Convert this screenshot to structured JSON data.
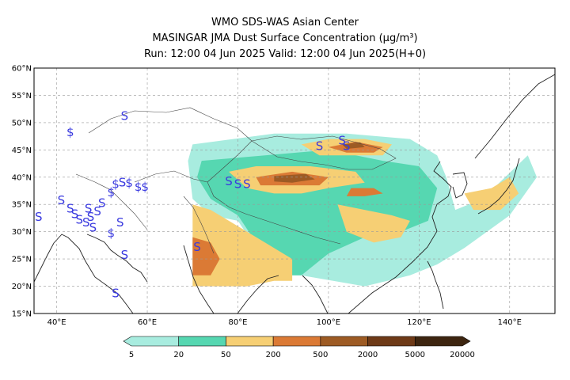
{
  "header": {
    "line1": "WMO SDS-WAS Asian Center",
    "line2": "MASINGAR JMA Dust Surface Concentration (μg/m³)",
    "line3": "Run: 12:00 04 Jun 2025     Valid: 12:00 04 Jun 2025(H+0)"
  },
  "axes": {
    "lat_ticks": [
      "60°N",
      "55°N",
      "50°N",
      "45°N",
      "40°N",
      "35°N",
      "30°N",
      "25°N",
      "20°N",
      "15°N"
    ],
    "lon_ticks": [
      "40°E",
      "60°E",
      "80°E",
      "100°E",
      "120°E",
      "140°E"
    ],
    "lon_range": [
      35,
      150
    ],
    "lat_range": [
      15,
      60
    ],
    "grid": true
  },
  "colorbar": {
    "labels": [
      "5",
      "20",
      "50",
      "200",
      "500",
      "2000",
      "5000",
      "20000"
    ],
    "colors": [
      "#a8ecdf",
      "#56d7b1",
      "#f6cf74",
      "#db7a35",
      "#9d5b24",
      "#6e3a17",
      "#3d2510"
    ]
  },
  "dust_regions": [
    {
      "level": 1,
      "points": [
        [
          70,
          46
        ],
        [
          88,
          48
        ],
        [
          104,
          48
        ],
        [
          118,
          47
        ],
        [
          124,
          44
        ],
        [
          126,
          40
        ],
        [
          128,
          34
        ],
        [
          134,
          36
        ],
        [
          144,
          44
        ],
        [
          146,
          40
        ],
        [
          140,
          33
        ],
        [
          130,
          27
        ],
        [
          124,
          24
        ],
        [
          118,
          22
        ],
        [
          108,
          20
        ],
        [
          94,
          22
        ],
        [
          88,
          22
        ],
        [
          80,
          32
        ],
        [
          74,
          33
        ],
        [
          70,
          36
        ],
        [
          69,
          43
        ]
      ]
    },
    {
      "level": 2,
      "points": [
        [
          72,
          43
        ],
        [
          86,
          44
        ],
        [
          100,
          45
        ],
        [
          112,
          43
        ],
        [
          120,
          42
        ],
        [
          124,
          38
        ],
        [
          122,
          32
        ],
        [
          116,
          30
        ],
        [
          108,
          29
        ],
        [
          100,
          26
        ],
        [
          94,
          22
        ],
        [
          90,
          22
        ],
        [
          88,
          24
        ],
        [
          84,
          28
        ],
        [
          80,
          33
        ],
        [
          74,
          36
        ],
        [
          71,
          40
        ]
      ]
    },
    {
      "level": 3,
      "points": [
        [
          70,
          35
        ],
        [
          74,
          34
        ],
        [
          80,
          31
        ],
        [
          86,
          28
        ],
        [
          92,
          25
        ],
        [
          92,
          21
        ],
        [
          88,
          21
        ],
        [
          82,
          20
        ],
        [
          74,
          20
        ],
        [
          70,
          20
        ]
      ]
    },
    {
      "level": 3,
      "points": [
        [
          78,
          41
        ],
        [
          84,
          42
        ],
        [
          96,
          42
        ],
        [
          106,
          41
        ],
        [
          108,
          39
        ],
        [
          100,
          38
        ],
        [
          94,
          37
        ],
        [
          88,
          37
        ],
        [
          82,
          38
        ]
      ]
    },
    {
      "level": 3,
      "points": [
        [
          94,
          46
        ],
        [
          100,
          47
        ],
        [
          108,
          47
        ],
        [
          114,
          46
        ],
        [
          112,
          44
        ],
        [
          104,
          44
        ],
        [
          98,
          44
        ]
      ]
    },
    {
      "level": 3,
      "points": [
        [
          102,
          35
        ],
        [
          108,
          34
        ],
        [
          114,
          33
        ],
        [
          118,
          32
        ],
        [
          116,
          29
        ],
        [
          110,
          28
        ],
        [
          104,
          30
        ]
      ]
    },
    {
      "level": 3,
      "points": [
        [
          130,
          37
        ],
        [
          136,
          38
        ],
        [
          140,
          40
        ],
        [
          142,
          37
        ],
        [
          138,
          34
        ],
        [
          132,
          34
        ]
      ]
    },
    {
      "level": 4,
      "points": [
        [
          70,
          29
        ],
        [
          74,
          28
        ],
        [
          76,
          25
        ],
        [
          74,
          22
        ],
        [
          70,
          22
        ]
      ]
    },
    {
      "level": 4,
      "points": [
        [
          84,
          40
        ],
        [
          92,
          41
        ],
        [
          100,
          40
        ],
        [
          98,
          38.5
        ],
        [
          90,
          38.5
        ],
        [
          85,
          38.5
        ]
      ]
    },
    {
      "level": 4,
      "points": [
        [
          100,
          45.5
        ],
        [
          106,
          46.5
        ],
        [
          112,
          45.5
        ],
        [
          110,
          44.5
        ],
        [
          104,
          44.5
        ]
      ]
    },
    {
      "level": 4,
      "points": [
        [
          105,
          38
        ],
        [
          110,
          38
        ],
        [
          112,
          37
        ],
        [
          108,
          36.5
        ],
        [
          104,
          36.5
        ]
      ]
    },
    {
      "level": 5,
      "points": [
        [
          88,
          40.2
        ],
        [
          95,
          40.6
        ],
        [
          97,
          39.6
        ],
        [
          92,
          39
        ],
        [
          88,
          39.2
        ]
      ]
    },
    {
      "level": 5,
      "points": [
        [
          103,
          46
        ],
        [
          107,
          46.4
        ],
        [
          108,
          45.5
        ],
        [
          104,
          45.2
        ]
      ]
    }
  ],
  "symbols": [
    {
      "lon": 43,
      "lat": 47.5,
      "glyph": "$"
    },
    {
      "lon": 55,
      "lat": 50.5,
      "glyph": "S"
    },
    {
      "lon": 98,
      "lat": 45,
      "glyph": "S"
    },
    {
      "lon": 103,
      "lat": 46,
      "glyph": "S"
    },
    {
      "lon": 104,
      "lat": 45,
      "glyph": "S"
    },
    {
      "lon": 41,
      "lat": 35,
      "glyph": "S"
    },
    {
      "lon": 43,
      "lat": 33.5,
      "glyph": "S"
    },
    {
      "lon": 44,
      "lat": 32.5,
      "glyph": "S"
    },
    {
      "lon": 45,
      "lat": 31.5,
      "glyph": "S"
    },
    {
      "lon": 47,
      "lat": 33.5,
      "glyph": "S"
    },
    {
      "lon": 46.5,
      "lat": 31,
      "glyph": "S"
    },
    {
      "lon": 47.5,
      "lat": 32,
      "glyph": "S"
    },
    {
      "lon": 49,
      "lat": 33,
      "glyph": "S"
    },
    {
      "lon": 50,
      "lat": 34.5,
      "glyph": "S"
    },
    {
      "lon": 48,
      "lat": 30,
      "glyph": "S"
    },
    {
      "lon": 36,
      "lat": 32,
      "glyph": "S"
    },
    {
      "lon": 53,
      "lat": 38,
      "glyph": "$"
    },
    {
      "lon": 54.5,
      "lat": 38.3,
      "glyph": "S"
    },
    {
      "lon": 56,
      "lat": 38.2,
      "glyph": "$"
    },
    {
      "lon": 58,
      "lat": 37.5,
      "glyph": "$"
    },
    {
      "lon": 59.5,
      "lat": 37.5,
      "glyph": "$"
    },
    {
      "lon": 52,
      "lat": 36.5,
      "glyph": "$"
    },
    {
      "lon": 54,
      "lat": 31,
      "glyph": "S"
    },
    {
      "lon": 52,
      "lat": 29,
      "glyph": "$"
    },
    {
      "lon": 55,
      "lat": 25,
      "glyph": "S"
    },
    {
      "lon": 53,
      "lat": 18,
      "glyph": "S"
    },
    {
      "lon": 71,
      "lat": 26.5,
      "glyph": "S"
    },
    {
      "lon": 78,
      "lat": 38.5,
      "glyph": "S"
    },
    {
      "lon": 80,
      "lat": 38,
      "glyph": "S"
    },
    {
      "lon": 82,
      "lat": 38,
      "glyph": "S"
    }
  ]
}
